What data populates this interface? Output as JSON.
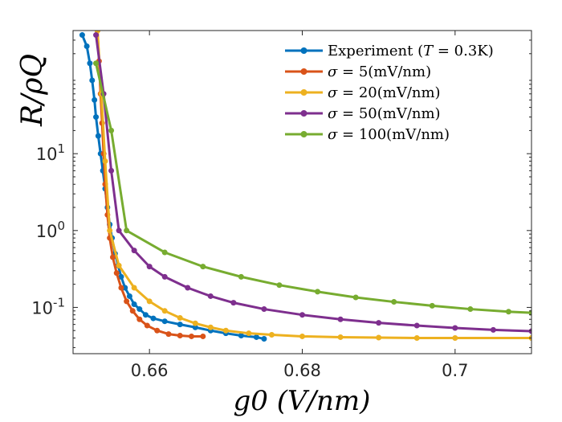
{
  "chart_data": {
    "type": "line",
    "title": "",
    "xlabel": "g0 (V/nm)",
    "ylabel": "R/ρQ",
    "y_scale": "log",
    "xlim": [
      0.65,
      0.71
    ],
    "ylim": [
      0.025,
      400
    ],
    "x_ticks": [
      {
        "value": 0.66,
        "label": "0.66"
      },
      {
        "value": 0.68,
        "label": "0.68"
      },
      {
        "value": 0.7,
        "label": "0.7"
      }
    ],
    "y_ticks": [
      {
        "value": 0.1,
        "base": "10",
        "exp": "-1"
      },
      {
        "value": 1,
        "base": "10",
        "exp": "0"
      },
      {
        "value": 10,
        "base": "10",
        "exp": "1"
      }
    ],
    "legend_position": "top-right",
    "series": [
      {
        "name": "Experiment (T = 0.3K)",
        "label_main": "Experiment (",
        "label_var": "T",
        "label_rest": " = 0.3K)",
        "color": "#0072BD",
        "points": [
          [
            0.6512,
            350
          ],
          [
            0.6518,
            250
          ],
          [
            0.6522,
            150
          ],
          [
            0.6525,
            90
          ],
          [
            0.6528,
            50
          ],
          [
            0.653,
            30
          ],
          [
            0.6533,
            17
          ],
          [
            0.6536,
            10
          ],
          [
            0.6539,
            6
          ],
          [
            0.6542,
            3.5
          ],
          [
            0.6545,
            2
          ],
          [
            0.6548,
            1.2
          ],
          [
            0.6551,
            0.8
          ],
          [
            0.6555,
            0.5
          ],
          [
            0.6559,
            0.35
          ],
          [
            0.6563,
            0.25
          ],
          [
            0.6568,
            0.18
          ],
          [
            0.6574,
            0.14
          ],
          [
            0.658,
            0.11
          ],
          [
            0.6587,
            0.095
          ],
          [
            0.6595,
            0.08
          ],
          [
            0.6605,
            0.072
          ],
          [
            0.662,
            0.066
          ],
          [
            0.664,
            0.06
          ],
          [
            0.666,
            0.055
          ],
          [
            0.668,
            0.05
          ],
          [
            0.67,
            0.046
          ],
          [
            0.672,
            0.043
          ],
          [
            0.674,
            0.041
          ],
          [
            0.675,
            0.039
          ]
        ]
      },
      {
        "name": "σ = 5(mV/nm)",
        "label_main": "",
        "label_var": "σ",
        "label_rest": " = 5(mV/nm)",
        "color": "#D95319",
        "points": [
          [
            0.6532,
            400
          ],
          [
            0.6534,
            160
          ],
          [
            0.6536,
            60
          ],
          [
            0.6538,
            25
          ],
          [
            0.654,
            10
          ],
          [
            0.6542,
            4
          ],
          [
            0.6545,
            1.6
          ],
          [
            0.6548,
            0.8
          ],
          [
            0.6552,
            0.45
          ],
          [
            0.6557,
            0.28
          ],
          [
            0.6563,
            0.18
          ],
          [
            0.657,
            0.12
          ],
          [
            0.6578,
            0.09
          ],
          [
            0.6587,
            0.07
          ],
          [
            0.6597,
            0.058
          ],
          [
            0.661,
            0.05
          ],
          [
            0.6625,
            0.045
          ],
          [
            0.664,
            0.043
          ],
          [
            0.6655,
            0.042
          ],
          [
            0.667,
            0.042
          ]
        ]
      },
      {
        "name": "σ = 20(mV/nm)",
        "label_main": "",
        "label_var": "σ",
        "label_rest": " = 20(mV/nm)",
        "color": "#EDB120",
        "points": [
          [
            0.6532,
            400
          ],
          [
            0.6537,
            60
          ],
          [
            0.6542,
            8
          ],
          [
            0.6548,
            1.0
          ],
          [
            0.656,
            0.35
          ],
          [
            0.658,
            0.18
          ],
          [
            0.66,
            0.12
          ],
          [
            0.662,
            0.09
          ],
          [
            0.664,
            0.073
          ],
          [
            0.666,
            0.062
          ],
          [
            0.668,
            0.055
          ],
          [
            0.67,
            0.05
          ],
          [
            0.673,
            0.046
          ],
          [
            0.676,
            0.044
          ],
          [
            0.68,
            0.042
          ],
          [
            0.685,
            0.041
          ],
          [
            0.69,
            0.0405
          ],
          [
            0.695,
            0.04
          ],
          [
            0.7,
            0.04
          ],
          [
            0.71,
            0.04
          ]
        ]
      },
      {
        "name": "σ = 50(mV/nm)",
        "label_main": "",
        "label_var": "σ",
        "label_rest": " = 50(mV/nm)",
        "color": "#7E2F8E",
        "points": [
          [
            0.653,
            350
          ],
          [
            0.654,
            60
          ],
          [
            0.655,
            6
          ],
          [
            0.656,
            1.0
          ],
          [
            0.658,
            0.55
          ],
          [
            0.66,
            0.34
          ],
          [
            0.662,
            0.25
          ],
          [
            0.665,
            0.18
          ],
          [
            0.668,
            0.14
          ],
          [
            0.671,
            0.115
          ],
          [
            0.675,
            0.095
          ],
          [
            0.68,
            0.08
          ],
          [
            0.685,
            0.07
          ],
          [
            0.69,
            0.063
          ],
          [
            0.695,
            0.058
          ],
          [
            0.7,
            0.054
          ],
          [
            0.705,
            0.051
          ],
          [
            0.71,
            0.049
          ]
        ]
      },
      {
        "name": "σ = 100(mV/nm)",
        "label_main": "",
        "label_var": "σ",
        "label_rest": " = 100(mV/nm)",
        "color": "#77AC30",
        "points": [
          [
            0.653,
            150
          ],
          [
            0.655,
            20
          ],
          [
            0.657,
            1.0
          ],
          [
            0.662,
            0.52
          ],
          [
            0.667,
            0.34
          ],
          [
            0.672,
            0.25
          ],
          [
            0.677,
            0.195
          ],
          [
            0.682,
            0.16
          ],
          [
            0.687,
            0.135
          ],
          [
            0.692,
            0.118
          ],
          [
            0.697,
            0.105
          ],
          [
            0.702,
            0.095
          ],
          [
            0.707,
            0.088
          ],
          [
            0.71,
            0.085
          ]
        ]
      }
    ]
  }
}
